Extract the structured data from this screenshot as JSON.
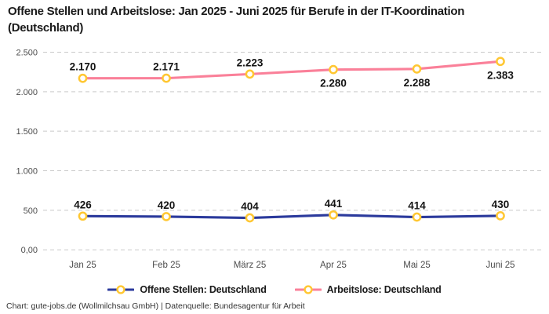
{
  "title": "Offene Stellen und Arbeitslose: Jan 2025 - Juni 2025 für Berufe in der IT-Koordination (Deutschland)",
  "footer": "Chart: gute-jobs.de (Wollmilchsau GmbH) | Datenquelle: Bundesagentur für Arbeit",
  "colors": {
    "open_positions": "#2b3a9c",
    "unemployed": "#fa8099",
    "marker_ring": "#ffc732",
    "marker_fill": "#ffffff",
    "grid": "#c9c9c9",
    "text": "#1a1a1a",
    "axis_text": "#4d4d4d",
    "background": "#ffffff"
  },
  "chart_data": {
    "type": "line",
    "title": "Offene Stellen und Arbeitslose: Jan 2025 - Juni 2025 für Berufe in der IT-Koordination (Deutschland)",
    "categories": [
      "Jan 25",
      "Feb 25",
      "März 25",
      "Apr 25",
      "Mai 25",
      "Juni 25"
    ],
    "series": [
      {
        "name": "Offene Stellen: Deutschland",
        "color_key": "open_positions",
        "values": [
          426,
          420,
          404,
          441,
          414,
          430
        ],
        "labels": [
          "426",
          "420",
          "404",
          "441",
          "414",
          "430"
        ],
        "label_position": [
          "above",
          "above",
          "above",
          "above",
          "above",
          "above"
        ]
      },
      {
        "name": "Arbeitslose: Deutschland",
        "color_key": "unemployed",
        "values": [
          2170,
          2171,
          2223,
          2280,
          2288,
          2383
        ],
        "labels": [
          "2.170",
          "2.171",
          "2.223",
          "2.280",
          "2.288",
          "2.383"
        ],
        "label_position": [
          "above",
          "above",
          "above",
          "below",
          "below",
          "below"
        ]
      }
    ],
    "y_ticks": [
      {
        "value": 0,
        "label": "0,00"
      },
      {
        "value": 500,
        "label": "500"
      },
      {
        "value": 1000,
        "label": "1.000"
      },
      {
        "value": 1500,
        "label": "1.500"
      },
      {
        "value": 2000,
        "label": "2.000"
      },
      {
        "value": 2500,
        "label": "2.500"
      }
    ],
    "ylim": [
      0,
      2500
    ],
    "grid": "dashed-horizontal",
    "legend_position": "bottom",
    "xlabel": "",
    "ylabel": ""
  },
  "legend": {
    "items": [
      {
        "label": "Offene Stellen: Deutschland",
        "color_key": "open_positions"
      },
      {
        "label": "Arbeitslose: Deutschland",
        "color_key": "unemployed"
      }
    ]
  }
}
